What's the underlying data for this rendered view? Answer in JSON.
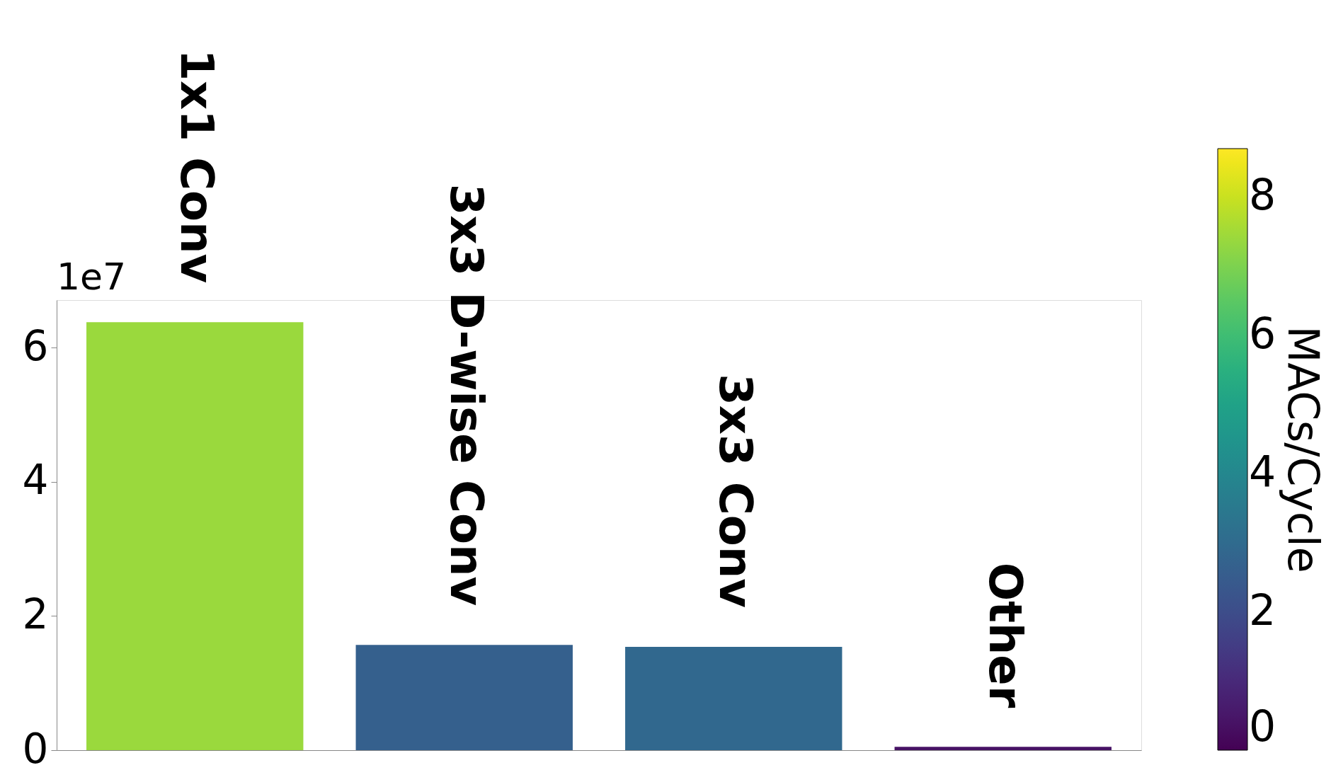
{
  "chart_data": {
    "type": "bar",
    "categories": [
      "1x1 Conv",
      "3x3 D-wise Conv",
      "3x3 Conv",
      "Other"
    ],
    "values": [
      6.38,
      1.57,
      1.54,
      0.05
    ],
    "cvalues": [
      7.4,
      2.6,
      2.9,
      0.4
    ],
    "clabel": "MACs/Cycle",
    "clim": [
      0,
      8.7
    ],
    "cticks": [
      0,
      2,
      4,
      6,
      8
    ],
    "ylim": [
      0,
      6.71
    ],
    "yticks": [
      0,
      2,
      4,
      6
    ],
    "annotations": [
      "1e7"
    ],
    "tick_labels": "y",
    "grid": false
  }
}
